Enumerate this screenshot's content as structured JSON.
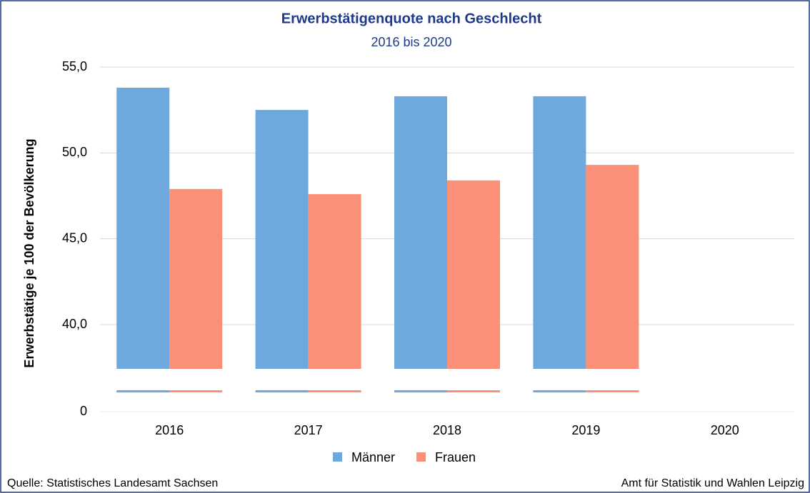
{
  "chart_data": {
    "type": "bar",
    "title": "Erwerbstätigenquote nach Geschlecht",
    "subtitle": "2016 bis 2020",
    "y_label": "Erwerbstätige je 100 der Bevölkerung",
    "categories": [
      "2016",
      "2017",
      "2018",
      "2019",
      "2020"
    ],
    "series": [
      {
        "name": "Männer",
        "color": "#6fa8dc",
        "values": [
          53.8,
          52.5,
          53.3,
          53.3,
          null
        ]
      },
      {
        "name": "Frauen",
        "color": "#fb8f78",
        "values": [
          47.9,
          47.6,
          48.4,
          49.3,
          null
        ]
      }
    ],
    "ylim": [
      0,
      55
    ],
    "yticks": [
      {
        "value": 0,
        "label": "0"
      },
      {
        "value": 40,
        "label": "40,0"
      },
      {
        "value": 45,
        "label": "45,0"
      },
      {
        "value": 50,
        "label": "50,0"
      },
      {
        "value": 55,
        "label": "55,0"
      }
    ],
    "grid": true,
    "legend": "bottom",
    "source_left": "Quelle: Statistisches Landesamt Sachsen",
    "source_right": "Amt für Statistik und Wahlen Leipzig"
  }
}
